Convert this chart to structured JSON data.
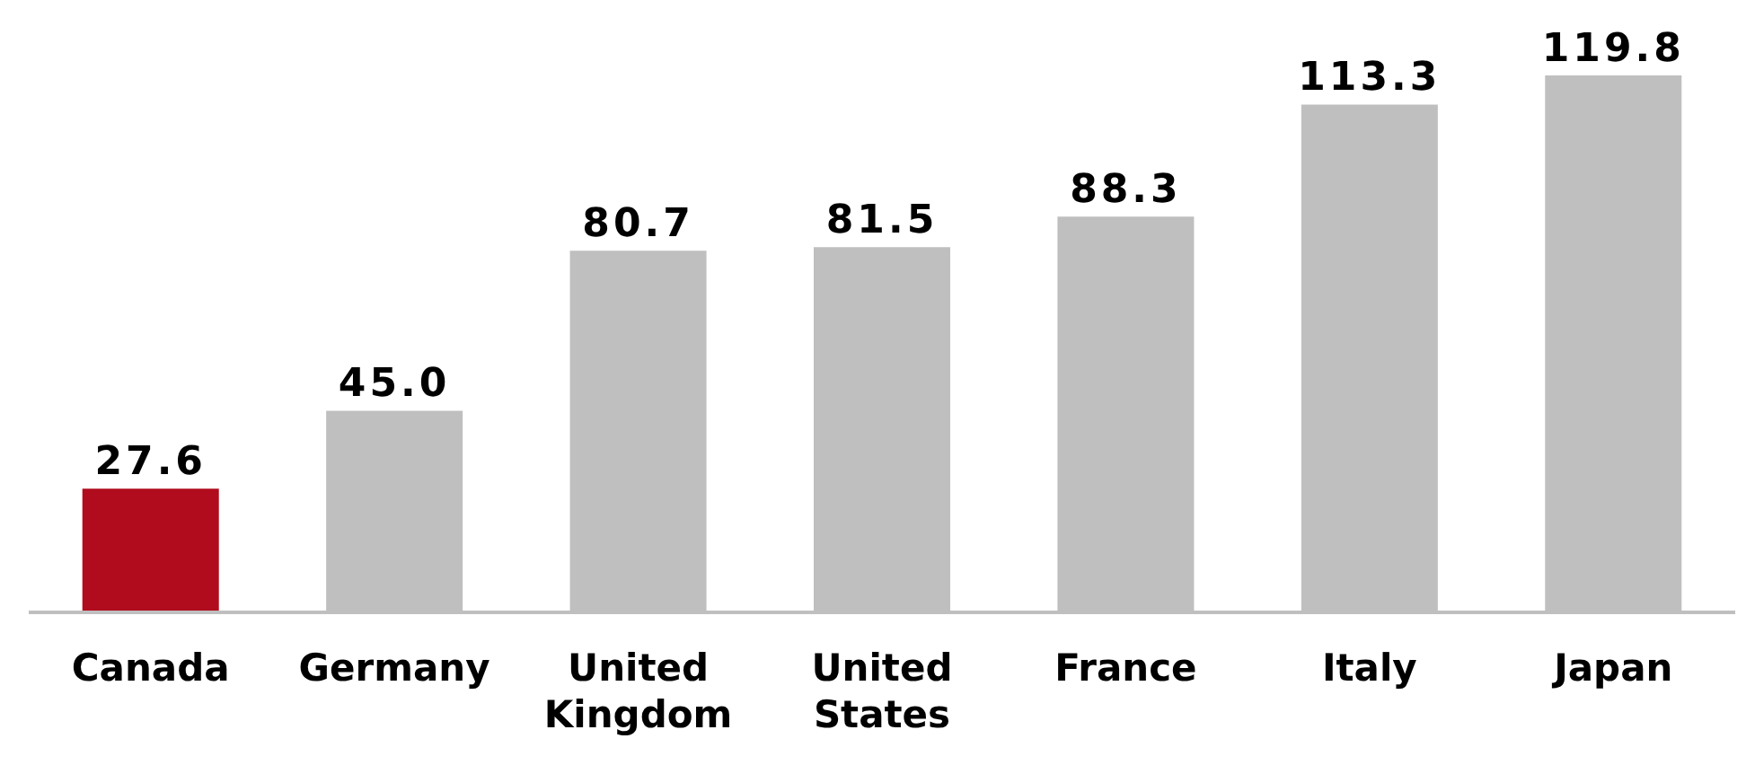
{
  "chart_data": {
    "type": "bar",
    "categories": [
      "Canada",
      "Germany",
      "United Kingdom",
      "United States",
      "France",
      "Italy",
      "Japan"
    ],
    "values": [
      27.6,
      45.0,
      80.7,
      81.5,
      88.3,
      113.3,
      119.8
    ],
    "colors": [
      "#b00c1e",
      "#bfbfbf",
      "#bfbfbf",
      "#bfbfbf",
      "#bfbfbf",
      "#bfbfbf",
      "#bfbfbf"
    ],
    "value_labels": [
      "27.6",
      "45.0",
      "80.7",
      "81.5",
      "88.3",
      "113.3",
      "119.8"
    ],
    "grid": false,
    "legend": false
  }
}
